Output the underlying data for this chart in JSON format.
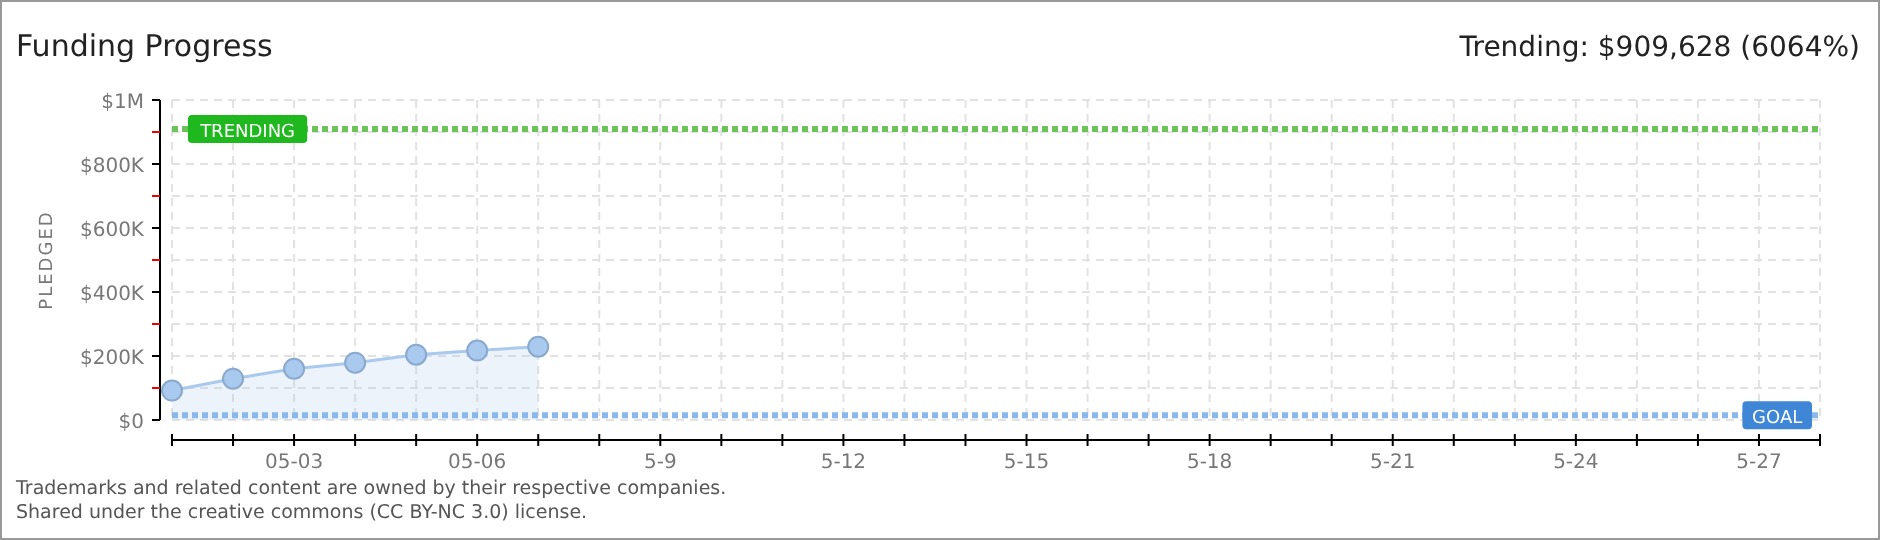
{
  "chart_data": {
    "type": "area",
    "title": "Funding Progress",
    "subtitle": "Trending: $909,628 (6064%)",
    "ylabel": "PLEDGED",
    "x": [
      "--05-01",
      "--05-02",
      "--05-03",
      "--05-04",
      "--05-05",
      "--05-06",
      "--05-07"
    ],
    "series": [
      {
        "color": "#a9c9ef",
        "values": [
          92000,
          129000,
          160000,
          179000,
          204000,
          217000,
          229000
        ]
      }
    ],
    "marker": "circle",
    "grid": true,
    "xlim": [
      "--05-01",
      "--05-28"
    ],
    "xticks": [
      {
        "value": "--05-01",
        "label": null
      },
      {
        "value": "--05-02",
        "label": null
      },
      {
        "value": "--05-03",
        "label": "05-03"
      },
      {
        "value": "--05-04",
        "label": null
      },
      {
        "value": "--05-05",
        "label": null
      },
      {
        "value": "--05-06",
        "label": "05-06"
      },
      {
        "value": "--05-07",
        "label": null
      },
      {
        "value": "--05-08",
        "label": null
      },
      {
        "value": "--05-09",
        "label": "5-9"
      },
      {
        "value": "--05-10",
        "label": null
      },
      {
        "value": "--05-11",
        "label": null
      },
      {
        "value": "--05-12",
        "label": "5-12"
      },
      {
        "value": "--05-13",
        "label": null
      },
      {
        "value": "--05-14",
        "label": null
      },
      {
        "value": "--05-15",
        "label": "5-15"
      },
      {
        "value": "--05-16",
        "label": null
      },
      {
        "value": "--05-17",
        "label": null
      },
      {
        "value": "--05-18",
        "label": "5-18"
      },
      {
        "value": "--05-19",
        "label": null
      },
      {
        "value": "--05-20",
        "label": null
      },
      {
        "value": "--05-21",
        "label": "5-21"
      },
      {
        "value": "--05-22",
        "label": null
      },
      {
        "value": "--05-23",
        "label": null
      },
      {
        "value": "--05-24",
        "label": "5-24"
      },
      {
        "value": "--05-25",
        "label": null
      },
      {
        "value": "--05-26",
        "label": null
      },
      {
        "value": "--05-27",
        "label": "5-27"
      },
      {
        "value": "--05-28",
        "label": null
      }
    ],
    "ylim": [
      0,
      1000000
    ],
    "yticks": [
      {
        "value": 0,
        "label": "$0"
      },
      {
        "value": 100000,
        "label": null
      },
      {
        "value": 200000,
        "label": "$200K"
      },
      {
        "value": 300000,
        "label": null
      },
      {
        "value": 400000,
        "label": "$400K"
      },
      {
        "value": 500000,
        "label": null
      },
      {
        "value": 600000,
        "label": "$600K"
      },
      {
        "value": 700000,
        "label": null
      },
      {
        "value": 800000,
        "label": "$800K"
      },
      {
        "value": 900000,
        "label": null
      },
      {
        "value": 1000000,
        "label": "$1M"
      }
    ],
    "ref_lines": [
      {
        "axis": "y",
        "value": 909628,
        "label": "TRENDING",
        "color": "#6cc35a",
        "line_style": "dotted"
      },
      {
        "axis": "y",
        "value": 15000,
        "label": "GOAL",
        "color": "#8ab8ea",
        "line_style": "dotted"
      }
    ],
    "annotations": [
      "Trademarks and related content are owned by their respective companies.",
      "Shared under the creative commons (CC BY-NC 3.0) license."
    ]
  }
}
